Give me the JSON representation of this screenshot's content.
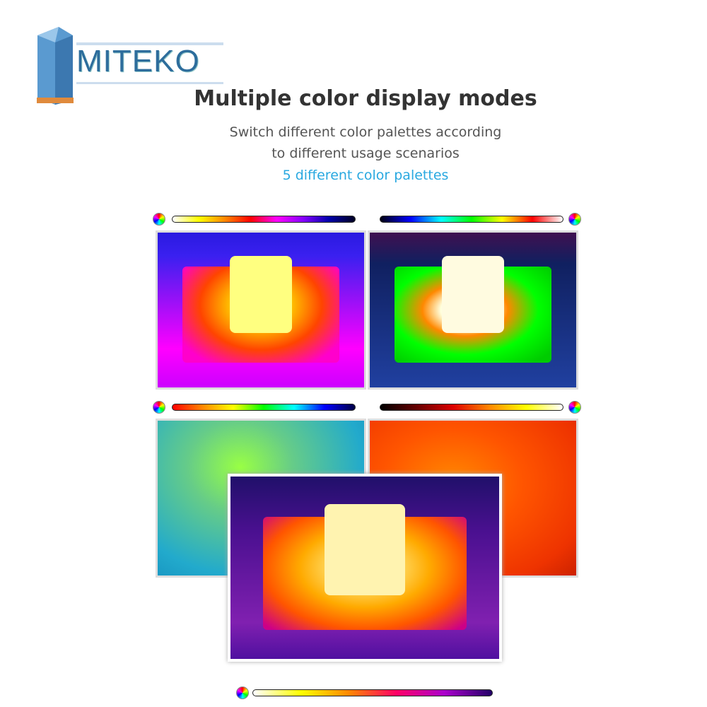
{
  "header": {
    "logo": "MITEKO",
    "title": "Multiple color display modes",
    "subtitle_lines": [
      "Switch different color palettes according",
      "to different usage scenarios"
    ],
    "highlight": "5 different color palettes"
  }
}
